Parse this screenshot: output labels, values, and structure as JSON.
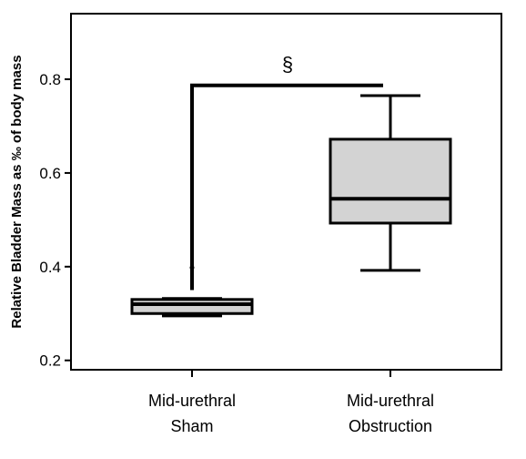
{
  "chart_data": {
    "type": "box",
    "ylabel": "Relative Bladder Mass as ‰ of body mass",
    "xlabel": "",
    "ylim": [
      0.18,
      0.94
    ],
    "yticks": [
      0.2,
      0.4,
      0.6,
      0.8
    ],
    "ytick_labels": [
      "0.2",
      "0.4",
      "0.6",
      "0.8"
    ],
    "categories": [
      {
        "line1": "Mid-urethral",
        "line2": "Sham"
      },
      {
        "line1": "Mid-urethral",
        "line2": "Obstruction"
      }
    ],
    "boxes": [
      {
        "whisker_low": 0.295,
        "q1": 0.3,
        "median": 0.32,
        "q3": 0.33,
        "whisker_high": 0.332,
        "outliers": [
          0.398
        ]
      },
      {
        "whisker_low": 0.392,
        "q1": 0.493,
        "median": 0.545,
        "q3": 0.672,
        "whisker_high": 0.765,
        "outliers": []
      }
    ],
    "box_color": "#d3d3d3",
    "significance": {
      "symbol": "§",
      "bar_y": 0.787,
      "drop_to": 0.35
    },
    "grid": false,
    "legend": "none"
  }
}
